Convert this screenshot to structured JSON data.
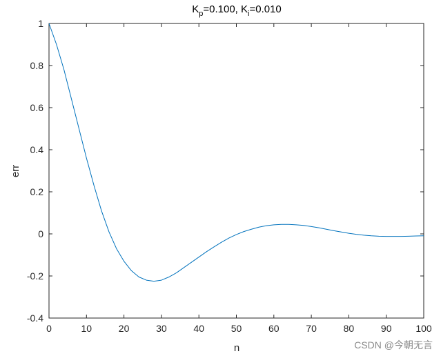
{
  "chart_data": {
    "type": "line",
    "title": "K_p=0.100, K_i=0.010",
    "title_parts": {
      "k1": "K",
      "sub1": "p",
      "mid": "=0.100, K",
      "sub2": "i",
      "end": "=0.010"
    },
    "xlabel": "n",
    "ylabel": "err",
    "xlim": [
      0,
      100
    ],
    "ylim": [
      -0.4,
      1
    ],
    "xticks": [
      "0",
      "10",
      "20",
      "30",
      "40",
      "50",
      "60",
      "70",
      "80",
      "90",
      "100"
    ],
    "yticks": [
      "-0.4",
      "-0.2",
      "0",
      "0.2",
      "0.4",
      "0.6",
      "0.8",
      "1"
    ],
    "grid": false,
    "series": [
      {
        "color": "#0072BD",
        "x": [
          0,
          2,
          4,
          6,
          8,
          10,
          12,
          14,
          16,
          18,
          20,
          22,
          24,
          26,
          28,
          30,
          32,
          34,
          36,
          38,
          40,
          42,
          44,
          46,
          48,
          50,
          52,
          54,
          56,
          58,
          60,
          62,
          64,
          66,
          68,
          70,
          72,
          74,
          76,
          78,
          80,
          82,
          84,
          86,
          88,
          90,
          92,
          94,
          96,
          98,
          100
        ],
        "y": [
          1.0,
          0.9,
          0.78,
          0.64,
          0.5,
          0.36,
          0.23,
          0.11,
          0.01,
          -0.07,
          -0.13,
          -0.175,
          -0.205,
          -0.22,
          -0.225,
          -0.22,
          -0.205,
          -0.185,
          -0.16,
          -0.135,
          -0.11,
          -0.085,
          -0.062,
          -0.04,
          -0.02,
          -0.003,
          0.011,
          0.022,
          0.032,
          0.039,
          0.043,
          0.045,
          0.045,
          0.043,
          0.04,
          0.035,
          0.029,
          0.022,
          0.015,
          0.009,
          0.003,
          -0.002,
          -0.006,
          -0.009,
          -0.011,
          -0.012,
          -0.012,
          -0.012,
          -0.011,
          -0.01,
          -0.009
        ]
      }
    ]
  },
  "watermark": "CSDN @今朝无言"
}
